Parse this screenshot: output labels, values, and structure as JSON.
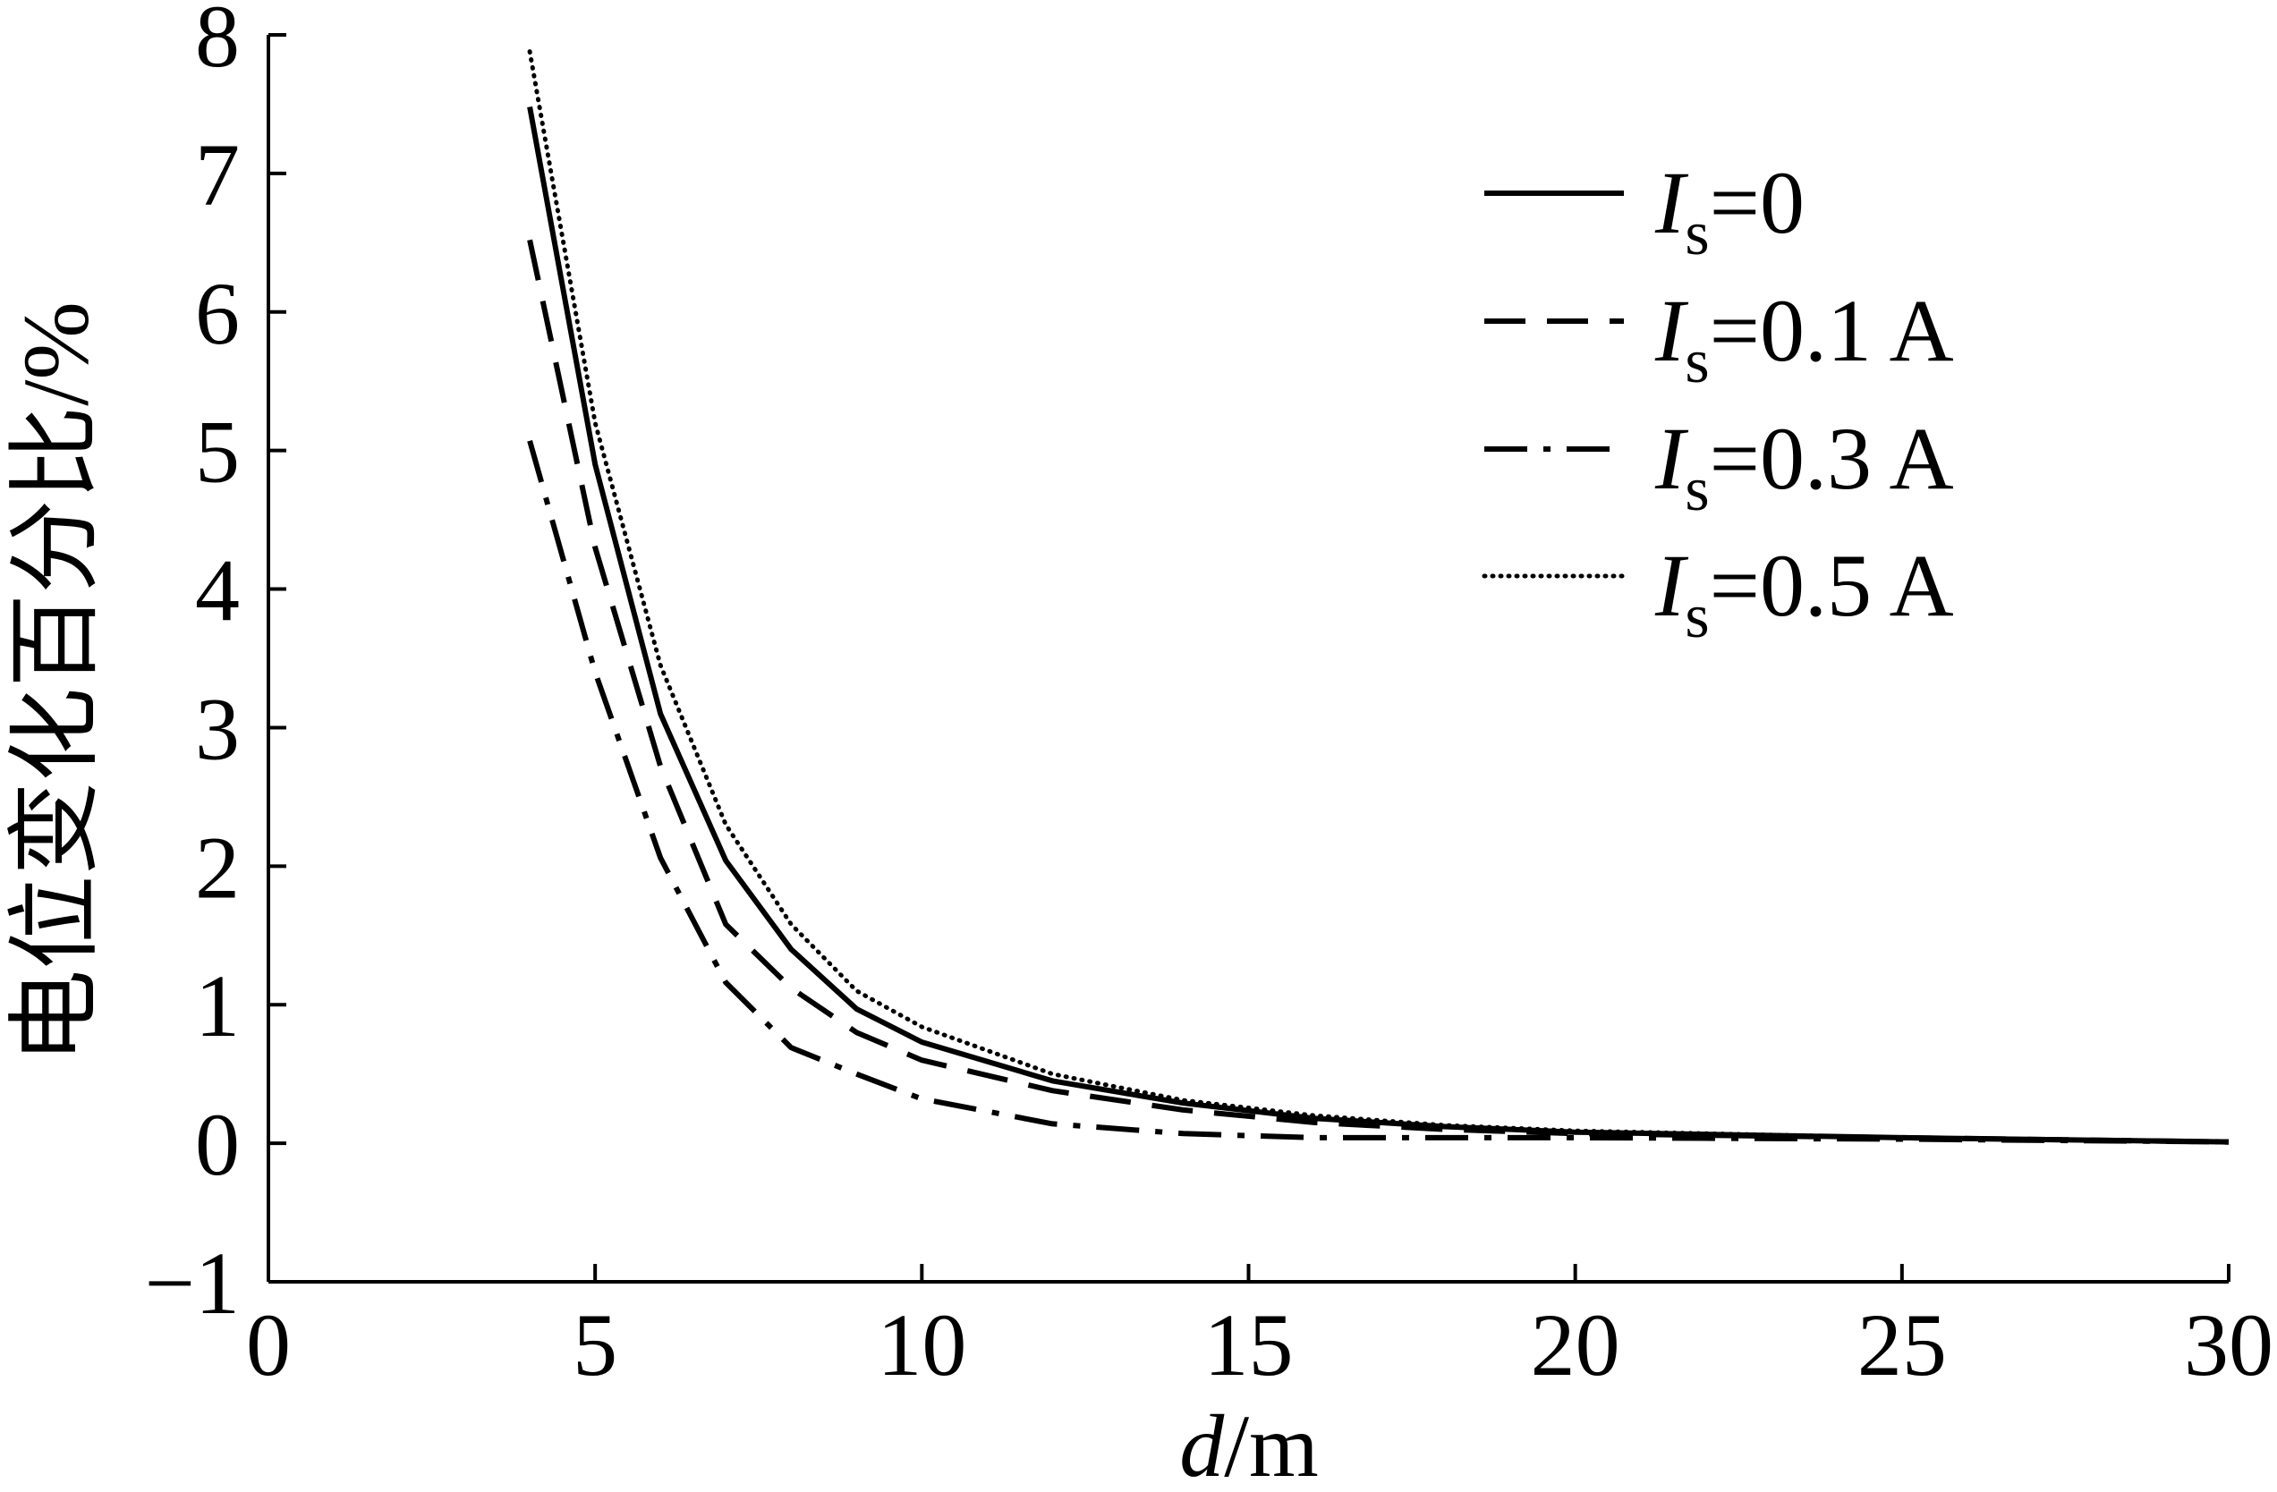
{
  "chart_data": {
    "type": "line",
    "xlabel": {
      "italic": "d",
      "rest": "/m"
    },
    "ylabel": "电位变化百分比/%",
    "xlim": [
      0,
      30
    ],
    "ylim": [
      -1,
      8
    ],
    "x_ticks": [
      0,
      5,
      10,
      15,
      20,
      25,
      30
    ],
    "x_tick_labels": [
      "0",
      "5",
      "10",
      "15",
      "20",
      "25",
      "30"
    ],
    "y_ticks": [
      -1,
      0,
      1,
      2,
      3,
      4,
      5,
      6,
      7,
      8
    ],
    "y_tick_labels": [
      "−1",
      "0",
      "1",
      "2",
      "3",
      "4",
      "5",
      "6",
      "7",
      "8"
    ],
    "grid": false,
    "legend": "top-right",
    "x": [
      4,
      5,
      6,
      7,
      8,
      9,
      10,
      12,
      14,
      16,
      18,
      20,
      25,
      30
    ],
    "series": [
      {
        "name_italic": "I",
        "name_sub": "s",
        "name_rest": "=0",
        "dash": "solid",
        "color": "#000000",
        "values": [
          7.48,
          4.9,
          3.1,
          2.04,
          1.4,
          0.97,
          0.73,
          0.45,
          0.29,
          0.18,
          0.12,
          0.08,
          0.04,
          0.01
        ]
      },
      {
        "name_italic": "I",
        "name_sub": "s",
        "name_rest": "=0.1 A",
        "dash": "dashed",
        "color": "#000000",
        "values": [
          6.52,
          4.3,
          2.72,
          1.58,
          1.12,
          0.8,
          0.6,
          0.38,
          0.24,
          0.15,
          0.1,
          0.07,
          0.04,
          0.01
        ]
      },
      {
        "name_italic": "I",
        "name_sub": "s",
        "name_rest": "=0.3 A",
        "dash": "dash-dot",
        "color": "#000000",
        "values": [
          5.07,
          3.4,
          2.06,
          1.16,
          0.69,
          0.5,
          0.32,
          0.14,
          0.07,
          0.04,
          0.04,
          0.04,
          0.03,
          0.01
        ]
      },
      {
        "name_italic": "I",
        "name_sub": "s",
        "name_rest": "=0.5 A",
        "dash": "dotted",
        "color": "#000000",
        "values": [
          7.88,
          5.2,
          3.45,
          2.3,
          1.58,
          1.1,
          0.84,
          0.5,
          0.31,
          0.2,
          0.13,
          0.09,
          0.04,
          0.01
        ]
      }
    ]
  }
}
